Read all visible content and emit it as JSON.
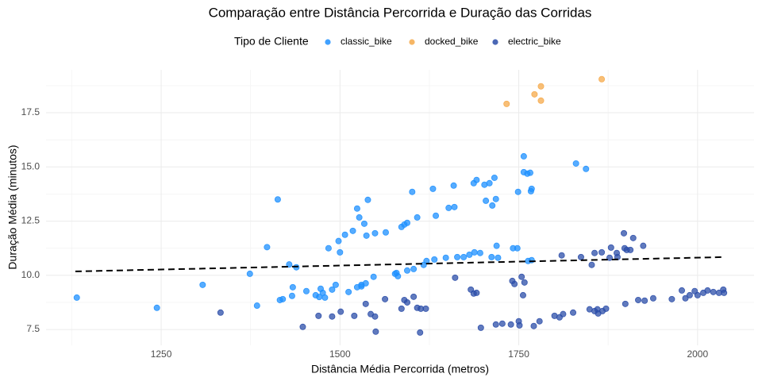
{
  "chart_data": {
    "type": "scatter",
    "title": "Comparação entre Distância Percorrida e Duração das Corridas",
    "x_label": "Distância Média Percorrida (metros)",
    "y_label": "Duração Média (minutos)",
    "legend_title": "Tipo de Cliente",
    "legend_position": "top",
    "grid": true,
    "xlim": [
      1089,
      2079
    ],
    "ylim": [
      6.77,
      19.48
    ],
    "xticks": [
      1250,
      1500,
      1750,
      2000
    ],
    "yticks": [
      {
        "value": 7.5,
        "label": "7.5"
      },
      {
        "value": 10,
        "label": "10.0"
      },
      {
        "value": 12.5,
        "label": "12.5"
      },
      {
        "value": 15,
        "label": "15.0"
      },
      {
        "value": 17.5,
        "label": "17.5"
      }
    ],
    "x_minor_grid": [
      1125,
      1375,
      1625,
      1875
    ],
    "y_minor_grid": [
      8.75,
      11.25,
      13.75,
      16.25,
      18.75
    ],
    "series": [
      {
        "name": "classic_bike",
        "color": "#1E90FF",
        "x": [
          1132,
          1244,
          1308,
          1374,
          1384,
          1398,
          1413,
          1416,
          1420,
          1429,
          1433,
          1434,
          1439,
          1453,
          1466,
          1471,
          1473,
          1476,
          1479,
          1484,
          1489,
          1494,
          1498,
          1500,
          1507,
          1512,
          1518,
          1524,
          1527,
          1530,
          1534,
          1537,
          1539,
          1524,
          1530,
          1536,
          1547,
          1549,
          1564,
          1577,
          1579,
          1581,
          1586,
          1590,
          1594,
          1594,
          1601,
          1603,
          1608,
          1617,
          1621,
          1630,
          1632,
          1634,
          1648,
          1652,
          1659,
          1660,
          1664,
          1673,
          1681,
          1687,
          1691,
          1688,
          1696,
          1702,
          1704,
          1709,
          1712,
          1713,
          1716,
          1718,
          1719,
          1721,
          1742,
          1748,
          1749,
          1757,
          1757,
          1762,
          1766,
          1767,
          1768,
          1763,
          1768,
          1830,
          1844
        ],
        "y": [
          8.97,
          8.5,
          9.56,
          10.07,
          8.6,
          11.3,
          13.5,
          8.86,
          8.9,
          10.5,
          9.05,
          9.45,
          10.37,
          9.27,
          9.08,
          9.0,
          9.38,
          9.19,
          8.97,
          11.25,
          9.34,
          9.56,
          11.58,
          11.06,
          11.87,
          9.23,
          12.05,
          13.08,
          12.67,
          9.56,
          12.38,
          11.83,
          13.48,
          9.45,
          9.49,
          9.63,
          9.93,
          11.94,
          11.98,
          10.07,
          10.11,
          9.96,
          12.23,
          12.34,
          12.42,
          10.22,
          13.85,
          10.29,
          12.67,
          10.48,
          10.66,
          13.99,
          10.73,
          12.75,
          10.81,
          13.11,
          14.14,
          13.15,
          10.84,
          10.84,
          10.95,
          14.25,
          14.4,
          11.06,
          11.03,
          14.18,
          13.44,
          14.25,
          10.84,
          13.22,
          14.5,
          13.52,
          11.36,
          10.81,
          11.25,
          11.25,
          13.85,
          15.49,
          14.76,
          14.69,
          14.73,
          13.88,
          13.99,
          10.66,
          10.7,
          15.16,
          14.91
        ]
      },
      {
        "name": "docked_bike",
        "color": "#F5A94A",
        "x": [
          1733,
          1772,
          1781,
          1781,
          1866
        ],
        "y": [
          17.91,
          18.35,
          18.72,
          18.06,
          19.05
        ]
      },
      {
        "name": "electric_bike",
        "color": "#2B4DA8",
        "x": [
          1333,
          1448,
          1470,
          1489,
          1501,
          1520,
          1536,
          1543,
          1549,
          1550,
          1563,
          1586,
          1590,
          1594,
          1603,
          1608,
          1612,
          1613,
          1620,
          1661,
          1683,
          1687,
          1697,
          1691,
          1718,
          1727,
          1739,
          1741,
          1744,
          1750,
          1751,
          1754,
          1756,
          1758,
          1771,
          1779,
          1800,
          1807,
          1812,
          1810,
          1826,
          1837,
          1849,
          1852,
          1856,
          1856,
          1860,
          1861,
          1866,
          1867,
          1872,
          1877,
          1879,
          1887,
          1888,
          1898,
          1901,
          1897,
          1899,
          1906,
          1910,
          1917,
          1924,
          1926,
          1938,
          1964,
          1978,
          1983,
          1989,
          1996,
          2000,
          2008,
          2014,
          2022,
          2030,
          2036,
          2037
        ],
        "y": [
          8.28,
          7.62,
          8.13,
          8.1,
          8.32,
          8.13,
          8.68,
          8.21,
          8.1,
          7.4,
          8.9,
          8.46,
          8.86,
          8.75,
          9.01,
          8.5,
          7.36,
          8.46,
          8.46,
          9.89,
          9.34,
          9.16,
          7.58,
          9.19,
          7.73,
          7.77,
          7.73,
          9.74,
          9.6,
          7.88,
          7.69,
          9.93,
          9.08,
          9.67,
          7.66,
          7.88,
          8.13,
          8.06,
          8.21,
          10.92,
          8.28,
          10.84,
          8.43,
          10.48,
          11.03,
          8.35,
          8.43,
          8.24,
          11.06,
          8.35,
          8.46,
          10.81,
          11.28,
          11.03,
          10.84,
          11.25,
          11.17,
          11.94,
          8.68,
          11.17,
          11.72,
          8.86,
          11.36,
          8.83,
          8.94,
          8.9,
          9.3,
          8.94,
          9.08,
          9.27,
          9.08,
          9.19,
          9.3,
          9.23,
          9.19,
          9.34,
          9.19
        ]
      }
    ],
    "trend_line": {
      "x": [
        1130,
        2035
      ],
      "y": [
        10.18,
        10.84
      ]
    }
  }
}
